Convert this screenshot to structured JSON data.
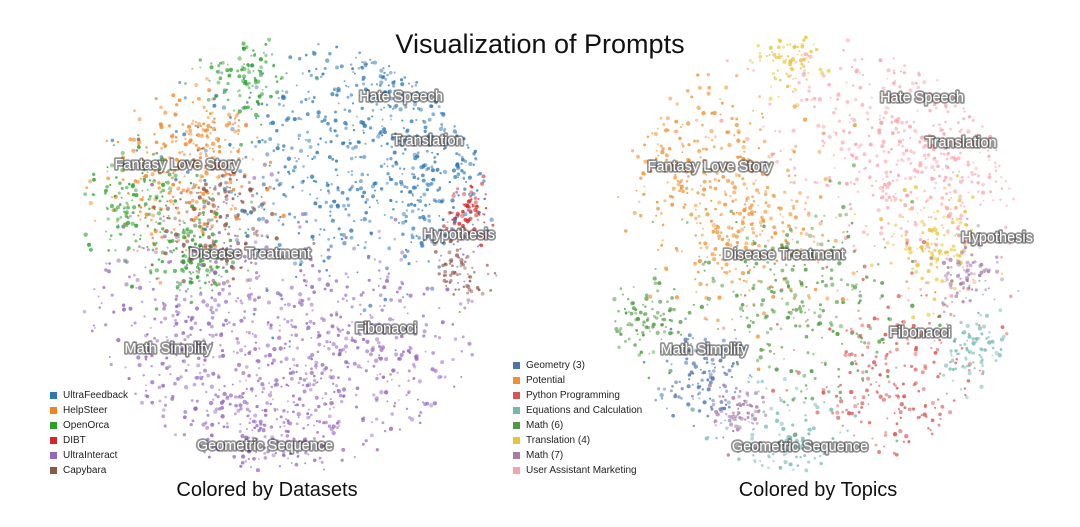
{
  "title": "Visualization of Prompts",
  "chart_data": [
    {
      "type": "scatter",
      "title": "Colored by Datasets",
      "legend_position": "bottom-left",
      "legend": [
        {
          "name": "UltraFeedback",
          "color": "#2f78b5"
        },
        {
          "name": "HelpSteer",
          "color": "#f5821f"
        },
        {
          "name": "OpenOrca",
          "color": "#2ca02c"
        },
        {
          "name": "DIBT",
          "color": "#d62728"
        },
        {
          "name": "UltraInteract",
          "color": "#9467bd"
        },
        {
          "name": "Capybara",
          "color": "#8c564b"
        }
      ],
      "annotations": [
        "Hate Speech",
        "Translation",
        "Fantasy Love Story",
        "Hypothesis",
        "Disease Treatment",
        "Fibonacci",
        "Math Simplify",
        "Geometric Sequence"
      ],
      "regions": [
        {
          "series": "UltraFeedback",
          "x": 0.62,
          "y": 0.72,
          "r": 0.55
        },
        {
          "series": "UltraFeedback",
          "x": 0.1,
          "y": 0.45,
          "r": 0.55
        },
        {
          "series": "UltraFeedback",
          "x": 0.78,
          "y": 0.35,
          "r": 0.35
        },
        {
          "series": "UltraFeedback",
          "x": 0.55,
          "y": 0.95,
          "r": 0.25
        },
        {
          "series": "HelpSteer",
          "x": -0.55,
          "y": 0.3,
          "r": 0.32
        },
        {
          "series": "HelpSteer",
          "x": -0.4,
          "y": 0.55,
          "r": 0.22
        },
        {
          "series": "OpenOrca",
          "x": -0.75,
          "y": 0.25,
          "r": 0.25
        },
        {
          "series": "OpenOrca",
          "x": -0.2,
          "y": 0.85,
          "r": 0.18
        },
        {
          "series": "OpenOrca",
          "x": -0.45,
          "y": 0.0,
          "r": 0.2
        },
        {
          "series": "DIBT",
          "x": 0.88,
          "y": 0.2,
          "r": 0.12
        },
        {
          "series": "Capybara",
          "x": -0.35,
          "y": 0.2,
          "r": 0.3
        },
        {
          "series": "Capybara",
          "x": 0.85,
          "y": -0.1,
          "r": 0.12
        },
        {
          "series": "UltraInteract",
          "x": 0.0,
          "y": -0.45,
          "r": 0.6
        },
        {
          "series": "UltraInteract",
          "x": -0.55,
          "y": -0.35,
          "r": 0.4
        },
        {
          "series": "UltraInteract",
          "x": 0.45,
          "y": -0.5,
          "r": 0.45
        },
        {
          "series": "UltraInteract",
          "x": -0.15,
          "y": -0.8,
          "r": 0.35
        }
      ]
    },
    {
      "type": "scatter",
      "title": "Colored by Topics",
      "legend_position": "bottom-left",
      "legend": [
        {
          "name": "Geometry (3)",
          "color": "#4c72b0"
        },
        {
          "name": "Potential",
          "color": "#f0902e"
        },
        {
          "name": "Python Programming",
          "color": "#d9534f"
        },
        {
          "name": "Equations and Calculation",
          "color": "#76b7b2"
        },
        {
          "name": "Math (6)",
          "color": "#4e9a3f"
        },
        {
          "name": "Translation (4)",
          "color": "#e8c43a"
        },
        {
          "name": "Math (7)",
          "color": "#a67ca6"
        },
        {
          "name": "User Assistant Marketing",
          "color": "#f7a3ad"
        }
      ],
      "annotations": [
        "Hate Speech",
        "Translation",
        "Fantasy Love Story",
        "Hypothesis",
        "Disease Treatment",
        "Fibonacci",
        "Math Simplify",
        "Geometric Sequence"
      ],
      "regions": [
        {
          "series": "User Assistant Marketing",
          "x": 0.3,
          "y": 0.6,
          "r": 0.6
        },
        {
          "series": "User Assistant Marketing",
          "x": 0.6,
          "y": 0.45,
          "r": 0.4
        },
        {
          "series": "Potential",
          "x": -0.55,
          "y": 0.45,
          "r": 0.45
        },
        {
          "series": "Potential",
          "x": -0.3,
          "y": 0.1,
          "r": 0.35
        },
        {
          "series": "Translation (4)",
          "x": 0.6,
          "y": 0.05,
          "r": 0.22
        },
        {
          "series": "Translation (4)",
          "x": -0.1,
          "y": 0.92,
          "r": 0.15
        },
        {
          "series": "Math (6)",
          "x": -0.05,
          "y": -0.2,
          "r": 0.45
        },
        {
          "series": "Math (6)",
          "x": -0.8,
          "y": -0.3,
          "r": 0.18
        },
        {
          "series": "Python Programming",
          "x": 0.4,
          "y": -0.6,
          "r": 0.42
        },
        {
          "series": "Geometry (3)",
          "x": -0.55,
          "y": -0.6,
          "r": 0.2
        },
        {
          "series": "Equations and Calculation",
          "x": -0.15,
          "y": -0.88,
          "r": 0.25
        },
        {
          "series": "Equations and Calculation",
          "x": 0.8,
          "y": -0.45,
          "r": 0.15
        },
        {
          "series": "Math (7)",
          "x": 0.75,
          "y": -0.1,
          "r": 0.15
        },
        {
          "series": "Math (7)",
          "x": -0.35,
          "y": -0.75,
          "r": 0.12
        }
      ]
    }
  ]
}
